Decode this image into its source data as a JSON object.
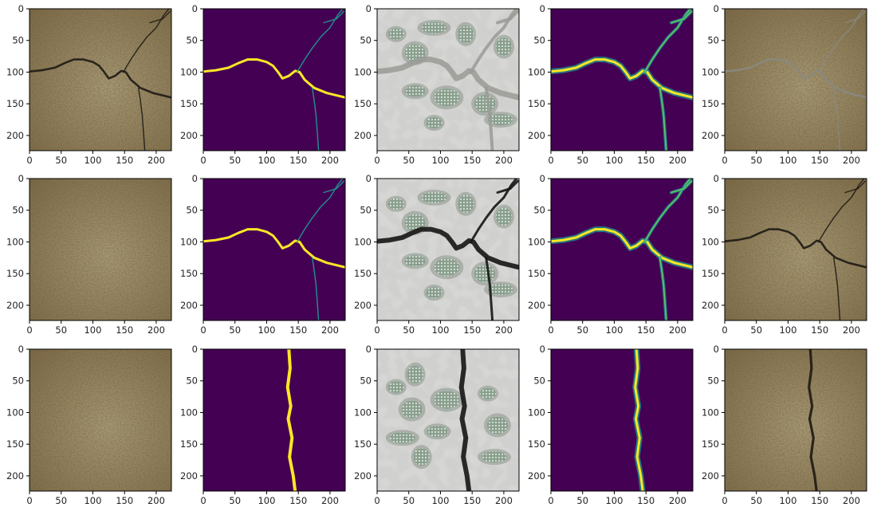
{
  "figure": {
    "grid": {
      "rows": 3,
      "cols": 5
    },
    "xticks": [
      "0",
      "50",
      "100",
      "150",
      "200"
    ],
    "yticks": [
      "0",
      "50",
      "100",
      "150",
      "200"
    ],
    "colors": {
      "soil_dark": "#7d6a45",
      "soil_light": "#a89872",
      "crack": "#1e1a14",
      "viridis_bg": "#440154",
      "viridis_mid": "#21918c",
      "viridis_hi": "#fde725",
      "gray_bg": "#d0d0ce",
      "gray_blob": "#8a958a"
    },
    "rows": [
      {
        "panels": [
          "soil-input",
          "binary-mask",
          "gray-feature",
          "heatmap-prediction",
          "soil-overlay"
        ]
      },
      {
        "panels": [
          "soil-input",
          "binary-mask",
          "gray-feature",
          "heatmap-prediction",
          "soil-overlay"
        ]
      },
      {
        "panels": [
          "soil-input",
          "binary-mask",
          "gray-feature",
          "heatmap-prediction",
          "soil-overlay"
        ]
      }
    ]
  }
}
